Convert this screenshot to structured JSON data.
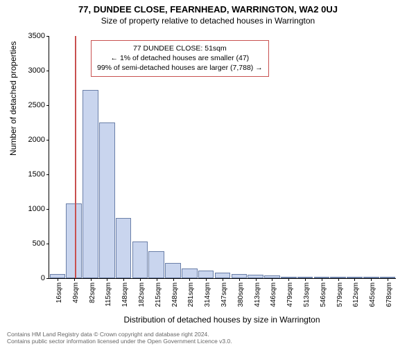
{
  "title_line1": "77, DUNDEE CLOSE, FEARNHEAD, WARRINGTON, WA2 0UJ",
  "title_line2": "Size of property relative to detached houses in Warrington",
  "ylabel": "Number of detached properties",
  "xlabel": "Distribution of detached houses by size in Warrington",
  "chart": {
    "type": "histogram",
    "background_color": "#ffffff",
    "bar_fill": "#c9d5ee",
    "bar_border": "#6a7fa8",
    "marker_color": "#c8504f",
    "marker_x_value": 51,
    "ylim": [
      0,
      3500
    ],
    "ytick_step": 500,
    "yticks": [
      0,
      500,
      1000,
      1500,
      2000,
      2500,
      3000,
      3500
    ],
    "x_data_min": 0,
    "x_data_max": 695,
    "categories": [
      "16sqm",
      "49sqm",
      "82sqm",
      "115sqm",
      "148sqm",
      "182sqm",
      "215sqm",
      "248sqm",
      "281sqm",
      "314sqm",
      "347sqm",
      "380sqm",
      "413sqm",
      "446sqm",
      "479sqm",
      "513sqm",
      "546sqm",
      "579sqm",
      "612sqm",
      "645sqm",
      "678sqm"
    ],
    "values": [
      60,
      1080,
      2720,
      2250,
      870,
      530,
      390,
      220,
      140,
      110,
      85,
      60,
      55,
      45,
      6,
      4,
      3,
      2,
      2,
      2,
      2
    ],
    "bar_width_ratio": 0.95,
    "tick_fontsize": 10,
    "label_fontsize": 12,
    "title_fontsize": 13
  },
  "annotation": {
    "line1": "77 DUNDEE CLOSE: 51sqm",
    "line2": "← 1% of detached houses are smaller (47)",
    "line3": "99% of semi-detached houses are larger (7,788) →",
    "border_color": "#c8504f"
  },
  "footer": {
    "line1": "Contains HM Land Registry data © Crown copyright and database right 2024.",
    "line2": "Contains public sector information licensed under the Open Government Licence v3.0."
  }
}
